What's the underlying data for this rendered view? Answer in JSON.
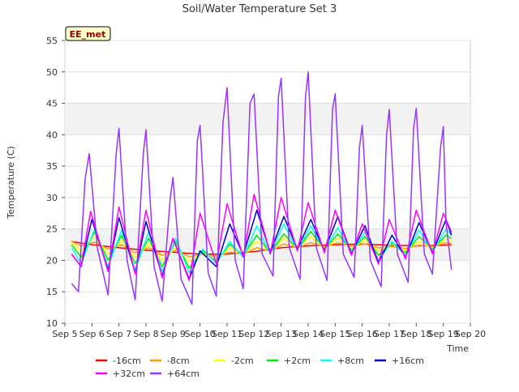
{
  "chart_data": {
    "type": "line",
    "title": "Soil/Water Temperature Set 3",
    "xlabel": "Time",
    "ylabel": "Temperature (C)",
    "site_label": "EE_met",
    "ylim": [
      10,
      55
    ],
    "yticks": [
      10,
      15,
      20,
      25,
      30,
      35,
      40,
      45,
      50,
      55
    ],
    "xlim": [
      5,
      20
    ],
    "xticks": [
      5,
      6,
      7,
      8,
      9,
      10,
      11,
      12,
      13,
      14,
      15,
      16,
      17,
      18,
      19,
      20
    ],
    "xtick_labels": [
      "Sep 5",
      "Sep 6",
      "Sep 7",
      "Sep 8",
      "Sep 9",
      "Sep 10",
      "Sep 11",
      "Sep 12",
      "Sep 13",
      "Sep 14",
      "Sep 15",
      "Sep 16",
      "Sep 17",
      "Sep 18",
      "Sep 19",
      "Sep 20"
    ],
    "grid": "horizontal bands",
    "legend_position": "bottom",
    "series": [
      {
        "name": "-16cm",
        "color": "#ff0000",
        "values": [
          [
            5.25,
            23.0
          ],
          [
            6,
            22.5
          ],
          [
            7,
            22.0
          ],
          [
            8,
            21.6
          ],
          [
            9,
            21.3
          ],
          [
            10,
            21.0
          ],
          [
            11,
            21.0
          ],
          [
            12,
            21.4
          ],
          [
            13,
            22.0
          ],
          [
            14,
            22.3
          ],
          [
            15,
            22.5
          ],
          [
            16,
            22.6
          ],
          [
            17,
            22.4
          ],
          [
            18,
            22.3
          ],
          [
            19,
            22.4
          ],
          [
            19.3,
            22.5
          ]
        ]
      },
      {
        "name": "-8cm",
        "color": "#ff9900",
        "values": [
          [
            5.25,
            23.0
          ],
          [
            5.6,
            22.3
          ],
          [
            6.1,
            22.9
          ],
          [
            6.6,
            21.8
          ],
          [
            7.1,
            22.5
          ],
          [
            7.6,
            21.2
          ],
          [
            8.1,
            22.0
          ],
          [
            8.6,
            20.8
          ],
          [
            9.1,
            21.6
          ],
          [
            9.6,
            20.6
          ],
          [
            10.1,
            21.0
          ],
          [
            10.6,
            20.7
          ],
          [
            11.1,
            21.3
          ],
          [
            11.6,
            21.0
          ],
          [
            12.1,
            22.0
          ],
          [
            12.6,
            21.5
          ],
          [
            13.1,
            22.6
          ],
          [
            13.6,
            22.0
          ],
          [
            14.1,
            22.8
          ],
          [
            14.6,
            22.2
          ],
          [
            15.1,
            22.8
          ],
          [
            15.6,
            22.3
          ],
          [
            16.1,
            22.6
          ],
          [
            16.6,
            22.0
          ],
          [
            17.1,
            22.2
          ],
          [
            17.6,
            21.9
          ],
          [
            18.1,
            22.4
          ],
          [
            18.6,
            22.2
          ],
          [
            19.1,
            22.8
          ],
          [
            19.3,
            22.7
          ]
        ]
      },
      {
        "name": "-2cm",
        "color": "#ffff00",
        "values": [
          [
            5.25,
            22.8
          ],
          [
            5.6,
            21.5
          ],
          [
            6.1,
            23.8
          ],
          [
            6.6,
            21.0
          ],
          [
            7.1,
            23.2
          ],
          [
            7.6,
            20.5
          ],
          [
            8.1,
            22.6
          ],
          [
            8.6,
            20.0
          ],
          [
            9.1,
            22.0
          ],
          [
            9.6,
            19.8
          ],
          [
            10.1,
            21.2
          ],
          [
            10.6,
            20.2
          ],
          [
            11.1,
            22.0
          ],
          [
            11.6,
            21.0
          ],
          [
            12.1,
            23.0
          ],
          [
            12.6,
            21.5
          ],
          [
            13.1,
            23.5
          ],
          [
            13.6,
            22.0
          ],
          [
            14.1,
            23.8
          ],
          [
            14.6,
            22.0
          ],
          [
            15.1,
            23.5
          ],
          [
            15.6,
            22.0
          ],
          [
            16.1,
            23.2
          ],
          [
            16.6,
            21.5
          ],
          [
            17.1,
            22.6
          ],
          [
            17.6,
            21.6
          ],
          [
            18.1,
            23.0
          ],
          [
            18.6,
            22.0
          ],
          [
            19.1,
            23.4
          ],
          [
            19.3,
            23.0
          ]
        ]
      },
      {
        "name": "+2cm",
        "color": "#00ee00",
        "values": [
          [
            5.25,
            22.5
          ],
          [
            5.6,
            20.5
          ],
          [
            6.1,
            24.5
          ],
          [
            6.6,
            20.0
          ],
          [
            7.1,
            24.0
          ],
          [
            7.6,
            19.5
          ],
          [
            8.1,
            23.5
          ],
          [
            8.6,
            19.0
          ],
          [
            9.1,
            23.0
          ],
          [
            9.6,
            18.8
          ],
          [
            10.1,
            21.5
          ],
          [
            10.6,
            19.8
          ],
          [
            11.1,
            22.6
          ],
          [
            11.6,
            20.8
          ],
          [
            12.1,
            24.0
          ],
          [
            12.6,
            21.2
          ],
          [
            13.1,
            24.2
          ],
          [
            13.6,
            21.8
          ],
          [
            14.1,
            24.6
          ],
          [
            14.6,
            21.8
          ],
          [
            15.1,
            24.2
          ],
          [
            15.6,
            21.6
          ],
          [
            16.1,
            23.8
          ],
          [
            16.6,
            20.8
          ],
          [
            17.1,
            22.8
          ],
          [
            17.6,
            21.2
          ],
          [
            18.1,
            23.8
          ],
          [
            18.6,
            21.8
          ],
          [
            19.1,
            24.0
          ],
          [
            19.3,
            23.5
          ]
        ]
      },
      {
        "name": "+8cm",
        "color": "#00ffff",
        "values": [
          [
            5.25,
            22.0
          ],
          [
            5.6,
            19.5
          ],
          [
            6.1,
            25.0
          ],
          [
            6.6,
            19.0
          ],
          [
            7.1,
            24.8
          ],
          [
            7.6,
            18.5
          ],
          [
            8.1,
            24.5
          ],
          [
            8.6,
            18.2
          ],
          [
            9.1,
            23.5
          ],
          [
            9.6,
            18.0
          ],
          [
            10.1,
            21.8
          ],
          [
            10.6,
            19.5
          ],
          [
            11.1,
            23.0
          ],
          [
            11.6,
            20.5
          ],
          [
            12.1,
            25.5
          ],
          [
            12.6,
            21.0
          ],
          [
            13.1,
            25.8
          ],
          [
            13.6,
            21.6
          ],
          [
            14.1,
            25.5
          ],
          [
            14.6,
            21.6
          ],
          [
            15.1,
            25.2
          ],
          [
            15.6,
            21.2
          ],
          [
            16.1,
            24.5
          ],
          [
            16.6,
            20.0
          ],
          [
            17.1,
            23.0
          ],
          [
            17.6,
            20.8
          ],
          [
            18.1,
            24.8
          ],
          [
            18.6,
            21.4
          ],
          [
            19.1,
            25.0
          ],
          [
            19.3,
            24.0
          ]
        ]
      },
      {
        "name": "+16cm",
        "color": "#0000cc",
        "values": [
          [
            5.25,
            21.0
          ],
          [
            5.6,
            19.0
          ],
          [
            6.0,
            26.5
          ],
          [
            6.6,
            18.5
          ],
          [
            7.0,
            26.8
          ],
          [
            7.6,
            18.0
          ],
          [
            8.0,
            26.2
          ],
          [
            8.6,
            17.5
          ],
          [
            9.0,
            23.5
          ],
          [
            9.6,
            17.0
          ],
          [
            10.0,
            21.5
          ],
          [
            10.6,
            19.0
          ],
          [
            11.1,
            25.8
          ],
          [
            11.6,
            20.8
          ],
          [
            12.1,
            28.0
          ],
          [
            12.6,
            21.2
          ],
          [
            13.1,
            27.0
          ],
          [
            13.6,
            21.8
          ],
          [
            14.1,
            26.5
          ],
          [
            14.6,
            21.5
          ],
          [
            15.1,
            27.0
          ],
          [
            15.6,
            21.0
          ],
          [
            16.1,
            25.5
          ],
          [
            16.6,
            19.6
          ],
          [
            17.1,
            24.0
          ],
          [
            17.6,
            20.5
          ],
          [
            18.1,
            26.0
          ],
          [
            18.6,
            21.2
          ],
          [
            19.1,
            26.5
          ],
          [
            19.3,
            24.0
          ]
        ]
      },
      {
        "name": "+32cm",
        "color": "#ff00ff",
        "values": [
          [
            5.25,
            21.0
          ],
          [
            5.6,
            19.0
          ],
          [
            5.95,
            27.8
          ],
          [
            6.6,
            18.2
          ],
          [
            7.0,
            28.5
          ],
          [
            7.6,
            17.8
          ],
          [
            8.0,
            28.0
          ],
          [
            8.6,
            17.2
          ],
          [
            9.0,
            23.5
          ],
          [
            9.6,
            16.8
          ],
          [
            10.0,
            27.5
          ],
          [
            10.6,
            19.5
          ],
          [
            11.0,
            29.0
          ],
          [
            11.6,
            20.5
          ],
          [
            12.0,
            30.5
          ],
          [
            12.6,
            21.0
          ],
          [
            13.0,
            30.0
          ],
          [
            13.6,
            21.5
          ],
          [
            14.0,
            29.2
          ],
          [
            14.6,
            21.2
          ],
          [
            15.0,
            28.0
          ],
          [
            15.6,
            20.8
          ],
          [
            16.0,
            25.8
          ],
          [
            16.6,
            19.4
          ],
          [
            17.0,
            26.5
          ],
          [
            17.6,
            20.2
          ],
          [
            18.0,
            28.0
          ],
          [
            18.6,
            21.0
          ],
          [
            19.0,
            27.5
          ],
          [
            19.3,
            24.5
          ]
        ]
      },
      {
        "name": "+64cm",
        "color": "#9933ff",
        "values": [
          [
            5.25,
            16.3
          ],
          [
            5.5,
            15.0
          ],
          [
            5.75,
            33.0
          ],
          [
            5.9,
            37.0
          ],
          [
            6.2,
            22.0
          ],
          [
            6.6,
            14.5
          ],
          [
            6.9,
            37.0
          ],
          [
            7.0,
            41.0
          ],
          [
            7.3,
            20.0
          ],
          [
            7.6,
            13.7
          ],
          [
            7.9,
            37.0
          ],
          [
            8.0,
            40.8
          ],
          [
            8.3,
            19.0
          ],
          [
            8.6,
            13.5
          ],
          [
            8.9,
            30.0
          ],
          [
            9.0,
            33.2
          ],
          [
            9.3,
            17.0
          ],
          [
            9.7,
            13.0
          ],
          [
            9.9,
            39.0
          ],
          [
            10.0,
            41.5
          ],
          [
            10.3,
            18.0
          ],
          [
            10.6,
            14.3
          ],
          [
            10.85,
            42.0
          ],
          [
            11.0,
            47.5
          ],
          [
            11.3,
            20.0
          ],
          [
            11.6,
            15.5
          ],
          [
            11.85,
            45.0
          ],
          [
            12.0,
            46.5
          ],
          [
            12.3,
            21.0
          ],
          [
            12.7,
            17.5
          ],
          [
            12.9,
            46.0
          ],
          [
            13.0,
            49.0
          ],
          [
            13.3,
            22.0
          ],
          [
            13.7,
            17.0
          ],
          [
            13.9,
            46.0
          ],
          [
            14.0,
            50.0
          ],
          [
            14.3,
            22.0
          ],
          [
            14.7,
            16.8
          ],
          [
            14.9,
            44.0
          ],
          [
            15.0,
            46.5
          ],
          [
            15.3,
            21.0
          ],
          [
            15.7,
            17.3
          ],
          [
            15.9,
            38.0
          ],
          [
            16.0,
            41.5
          ],
          [
            16.3,
            20.0
          ],
          [
            16.7,
            15.8
          ],
          [
            16.9,
            40.0
          ],
          [
            17.0,
            44.0
          ],
          [
            17.3,
            21.0
          ],
          [
            17.7,
            16.5
          ],
          [
            17.9,
            41.0
          ],
          [
            18.0,
            44.2
          ],
          [
            18.3,
            21.0
          ],
          [
            18.6,
            17.8
          ],
          [
            18.9,
            38.0
          ],
          [
            19.0,
            41.3
          ],
          [
            19.1,
            26.0
          ],
          [
            19.3,
            18.5
          ]
        ]
      }
    ]
  }
}
